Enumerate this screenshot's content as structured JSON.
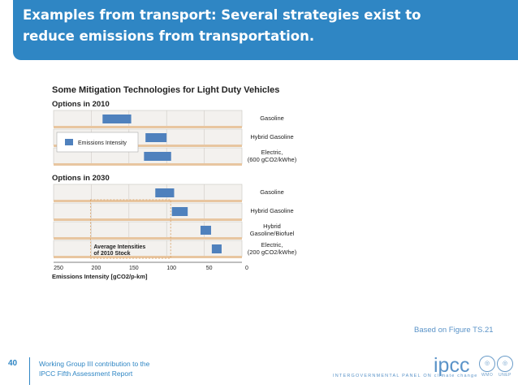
{
  "slide": {
    "title": "Examples from transport: Several strategies exist to reduce emissions from transportation.",
    "caption": "Based on Figure TS.21",
    "page_number": "40",
    "footer_line1": "Working Group III contribution to the",
    "footer_line2": "IPCC Fifth Assessment Report",
    "brand_name": "ipcc",
    "brand_tagline": "INTERGOVERNMENTAL PANEL ON climate change",
    "logo_left": "WMO",
    "logo_right": "UNEP",
    "accent_color": "#2f86c4",
    "bar_color": "#4f81bd"
  },
  "chart_data": {
    "type": "range-bar",
    "title": "Some Mitigation Technologies for Light Duty Vehicles",
    "xlabel": "Emissions Intensity [gCO2/p-km]",
    "x_reversed": true,
    "xlim": [
      250,
      0
    ],
    "ticks": [
      "250",
      "200",
      "150",
      "100",
      "50",
      "0"
    ],
    "legend": "Emissions Intensity",
    "annotation": "Average Intensities of 2010 Stock",
    "annotation_line1": "Average Intensities",
    "annotation_line2": "of 2010 Stock",
    "annotation_range": [
      200,
      100
    ],
    "groups": [
      {
        "label": "Options in 2010",
        "rows": [
          {
            "label": "Gasoline",
            "range": [
              185,
              147
            ]
          },
          {
            "label": "Hybrid Gasoline",
            "range": [
              128,
              100
            ]
          },
          {
            "label": "Electric, (600 gCO2/kWhe)",
            "label_line1": "Electric,",
            "label_line2": "(600 gCO2/kWhe)",
            "range": [
              130,
              94
            ]
          }
        ]
      },
      {
        "label": "Options in 2030",
        "rows": [
          {
            "label": "Gasoline",
            "range": [
              115,
              90
            ]
          },
          {
            "label": "Hybrid Gasoline",
            "range": [
              93,
              72
            ]
          },
          {
            "label": "Hybrid Gasoline/Biofuel",
            "label_line1": "Hybrid",
            "label_line2": "Gasoline/Biofuel",
            "range": [
              55,
              41
            ]
          },
          {
            "label": "Electric, (200 gCO2/kWhe)",
            "label_line1": "Electric,",
            "label_line2": "(200 gCO2/kWhe)",
            "range": [
              40,
              27
            ]
          }
        ]
      }
    ]
  }
}
